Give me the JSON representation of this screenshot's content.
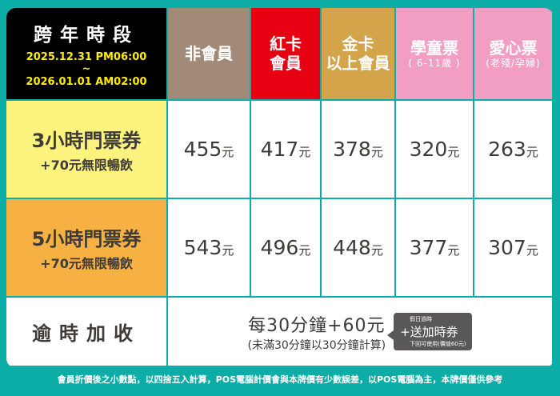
{
  "header": {
    "period_title": "跨年時段",
    "period_start": "2025.12.31  PM06:00",
    "period_sep": "~",
    "period_end": "2026.01.01  AM02:00",
    "columns": [
      {
        "label": "非會員",
        "sub": "",
        "color": "#a28a78"
      },
      {
        "label": "紅卡",
        "label2": "會員",
        "color": "#e60012"
      },
      {
        "label": "金卡",
        "label2": "以上會員",
        "color": "#d4a44a"
      },
      {
        "label": "學童票",
        "sub": "( 6-11歲 )",
        "color": "#f19ec2"
      },
      {
        "label": "愛心票",
        "sub": "(老殘/孕婦)",
        "color": "#f19ec2"
      }
    ]
  },
  "rows": [
    {
      "title": "3小時門票券",
      "sub": "+70元無限暢飲",
      "color": "#fcf37e",
      "prices": [
        "455",
        "417",
        "378",
        "320",
        "263"
      ]
    },
    {
      "title": "5小時門票券",
      "sub": "+70元無限暢飲",
      "color": "#f6b142",
      "prices": [
        "543",
        "496",
        "448",
        "377",
        "307"
      ]
    }
  ],
  "unit": "元",
  "overtime": {
    "label": "逾時加收",
    "main": "每30分鐘+60元",
    "note": "(未滿30分鐘以30分鐘計算)",
    "bubble_top": "假日逾時",
    "bubble_main": "+送加時券",
    "bubble_bottom": "下回可使用(價值60元)"
  },
  "footer": "會員折價後之小數點，以四捨五入計算，POS電腦計價會與本牌價有少數誤差，以POS電腦為主，本牌價僅供參考"
}
